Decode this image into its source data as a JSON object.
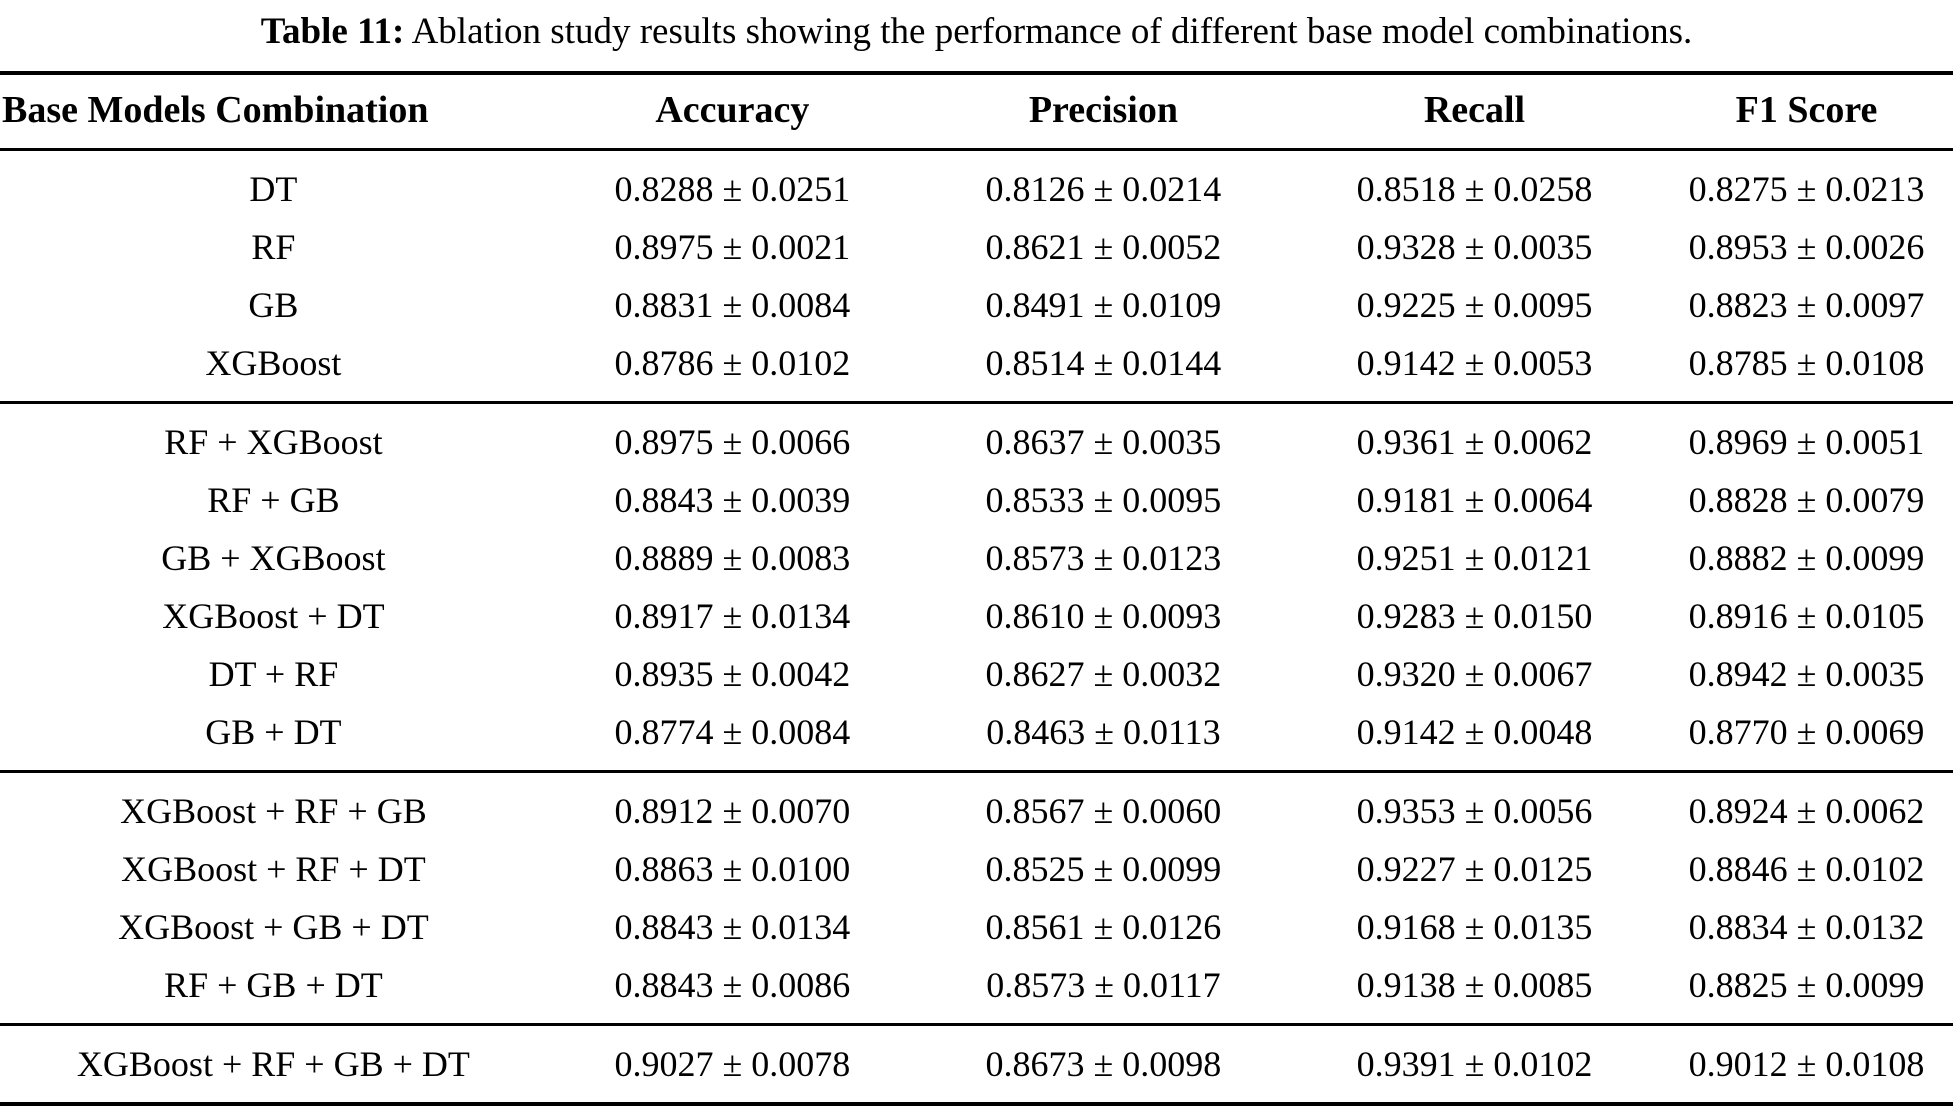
{
  "caption": {
    "label": "Table 11:",
    "text": "Ablation study results showing the performance of different base model combinations."
  },
  "table": {
    "columns": [
      "Base Models Combination",
      "Accuracy",
      "Precision",
      "Recall",
      "F1 Score"
    ],
    "groups": [
      [
        [
          "DT",
          "0.8288 ± 0.0251",
          "0.8126 ± 0.0214",
          "0.8518 ± 0.0258",
          "0.8275 ± 0.0213"
        ],
        [
          "RF",
          "0.8975 ± 0.0021",
          "0.8621 ± 0.0052",
          "0.9328 ± 0.0035",
          "0.8953 ± 0.0026"
        ],
        [
          "GB",
          "0.8831 ± 0.0084",
          "0.8491 ± 0.0109",
          "0.9225 ± 0.0095",
          "0.8823 ± 0.0097"
        ],
        [
          "XGBoost",
          "0.8786 ± 0.0102",
          "0.8514 ± 0.0144",
          "0.9142 ± 0.0053",
          "0.8785 ± 0.0108"
        ]
      ],
      [
        [
          "RF + XGBoost",
          "0.8975 ± 0.0066",
          "0.8637 ± 0.0035",
          "0.9361 ± 0.0062",
          "0.8969 ± 0.0051"
        ],
        [
          "RF + GB",
          "0.8843 ± 0.0039",
          "0.8533 ± 0.0095",
          "0.9181 ± 0.0064",
          "0.8828 ± 0.0079"
        ],
        [
          "GB + XGBoost",
          "0.8889 ± 0.0083",
          "0.8573 ± 0.0123",
          "0.9251 ± 0.0121",
          "0.8882 ± 0.0099"
        ],
        [
          "XGBoost + DT",
          "0.8917 ± 0.0134",
          "0.8610 ± 0.0093",
          "0.9283 ± 0.0150",
          "0.8916 ± 0.0105"
        ],
        [
          "DT + RF",
          "0.8935 ± 0.0042",
          "0.8627 ± 0.0032",
          "0.9320 ± 0.0067",
          "0.8942 ± 0.0035"
        ],
        [
          "GB + DT",
          "0.8774 ± 0.0084",
          "0.8463 ± 0.0113",
          "0.9142 ± 0.0048",
          "0.8770 ± 0.0069"
        ]
      ],
      [
        [
          "XGBoost + RF + GB",
          "0.8912 ± 0.0070",
          "0.8567 ± 0.0060",
          "0.9353 ± 0.0056",
          "0.8924 ± 0.0062"
        ],
        [
          "XGBoost + RF + DT",
          "0.8863 ± 0.0100",
          "0.8525 ± 0.0099",
          "0.9227 ± 0.0125",
          "0.8846 ± 0.0102"
        ],
        [
          "XGBoost + GB + DT",
          "0.8843 ± 0.0134",
          "0.8561 ± 0.0126",
          "0.9168 ± 0.0135",
          "0.8834 ± 0.0132"
        ],
        [
          "RF + GB + DT",
          "0.8843 ± 0.0086",
          "0.8573 ± 0.0117",
          "0.9138 ± 0.0085",
          "0.8825 ± 0.0099"
        ]
      ],
      [
        [
          "XGBoost + RF + GB + DT",
          "0.9027 ± 0.0078",
          "0.8673 ± 0.0098",
          "0.9391 ± 0.0102",
          "0.9012 ± 0.0108"
        ]
      ]
    ]
  }
}
